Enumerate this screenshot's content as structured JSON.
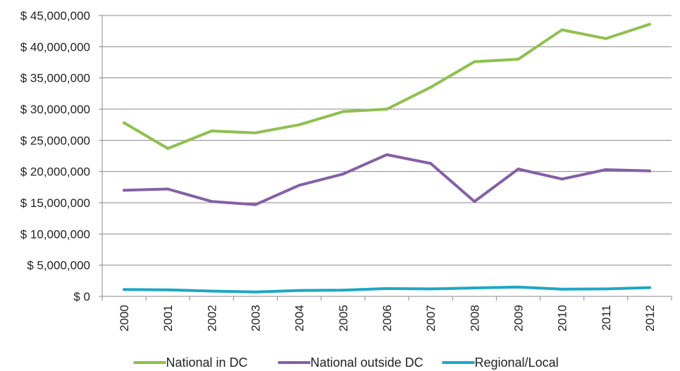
{
  "chart_data": {
    "type": "line",
    "x": [
      "2000",
      "2001",
      "2002",
      "2003",
      "2004",
      "2005",
      "2006",
      "2007",
      "2008",
      "2009",
      "2010",
      "2011",
      "2012"
    ],
    "y_ticks": [
      "$ 0",
      "$ 5,000,000",
      "$ 10,000,000",
      "$ 15,000,000",
      "$ 20,000,000",
      "$ 25,000,000",
      "$ 30,000,000",
      "$ 35,000,000",
      "$ 40,000,000",
      "$ 45,000,000"
    ],
    "ylim": [
      0,
      45000000
    ],
    "grid": true,
    "legend_position": "bottom",
    "series": [
      {
        "name": "National in DC",
        "color": "#8fc04f",
        "values": [
          27800000,
          23700000,
          26500000,
          26200000,
          27500000,
          29600000,
          30000000,
          33500000,
          37600000,
          38000000,
          42700000,
          41300000,
          43600000
        ]
      },
      {
        "name": "National outside DC",
        "color": "#8460a6",
        "values": [
          17000000,
          17200000,
          15200000,
          14700000,
          17800000,
          19600000,
          22700000,
          21300000,
          15200000,
          20400000,
          18800000,
          20300000,
          20100000
        ]
      },
      {
        "name": "Regional/Local",
        "color": "#1fa6c4",
        "values": [
          1100000,
          1050000,
          850000,
          700000,
          950000,
          1000000,
          1250000,
          1200000,
          1350000,
          1500000,
          1150000,
          1200000,
          1400000
        ]
      }
    ]
  }
}
